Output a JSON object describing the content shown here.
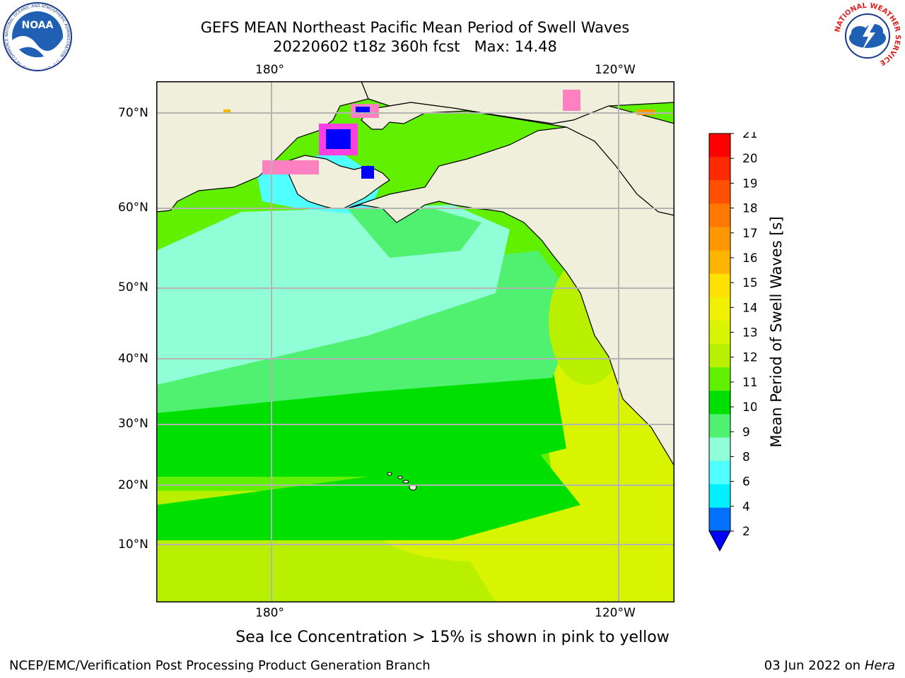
{
  "title": "GEFS MEAN Northeast Pacific Mean Period of Swell Waves",
  "subtitle": "20220602 t18z 360h fcst   Max: 14.48",
  "axes": {
    "lon_ticks_top": [
      "180°",
      "120°W"
    ],
    "lon_ticks_bottom": [
      "180°",
      "120°W"
    ],
    "lat_ticks": [
      "70°N",
      "60°N",
      "50°N",
      "40°N",
      "30°N",
      "20°N",
      "10°N"
    ]
  },
  "colorbar": {
    "label": "Mean Period of Swell Waves [s]",
    "ticks": [
      "21",
      "20",
      "19",
      "18",
      "17",
      "16",
      "15",
      "14",
      "13",
      "12",
      "11",
      "10",
      "9",
      "8",
      "6",
      "4",
      "2"
    ],
    "colors": [
      "#ff0000",
      "#ff2a00",
      "#ff5000",
      "#ff7800",
      "#ff9800",
      "#ffb400",
      "#ffe000",
      "#f0f000",
      "#d8f400",
      "#b8f000",
      "#60f000",
      "#00e000",
      "#50f070",
      "#90ffd8",
      "#50ffff",
      "#00f0ff",
      "#00c0ff",
      "#0070ff"
    ],
    "extend_color": "#0000ff"
  },
  "ice_note": "Sea Ice Concentration > 15% is shown in pink to yellow",
  "footer": {
    "credit": "NCEP/EMC/Verification Post Processing Product Generation Branch",
    "date": "03 Jun 2022 on",
    "machine": "Hera"
  },
  "logos": {
    "noaa_text": "NOAA",
    "noaa_ring_text": "NATIONAL OCEANIC AND ATMOSPHERIC ADMINISTRATION · U.S. DEPARTMENT OF COMMERCE",
    "nws_ring_text": "NATIONAL WEATHER SERVICE"
  }
}
